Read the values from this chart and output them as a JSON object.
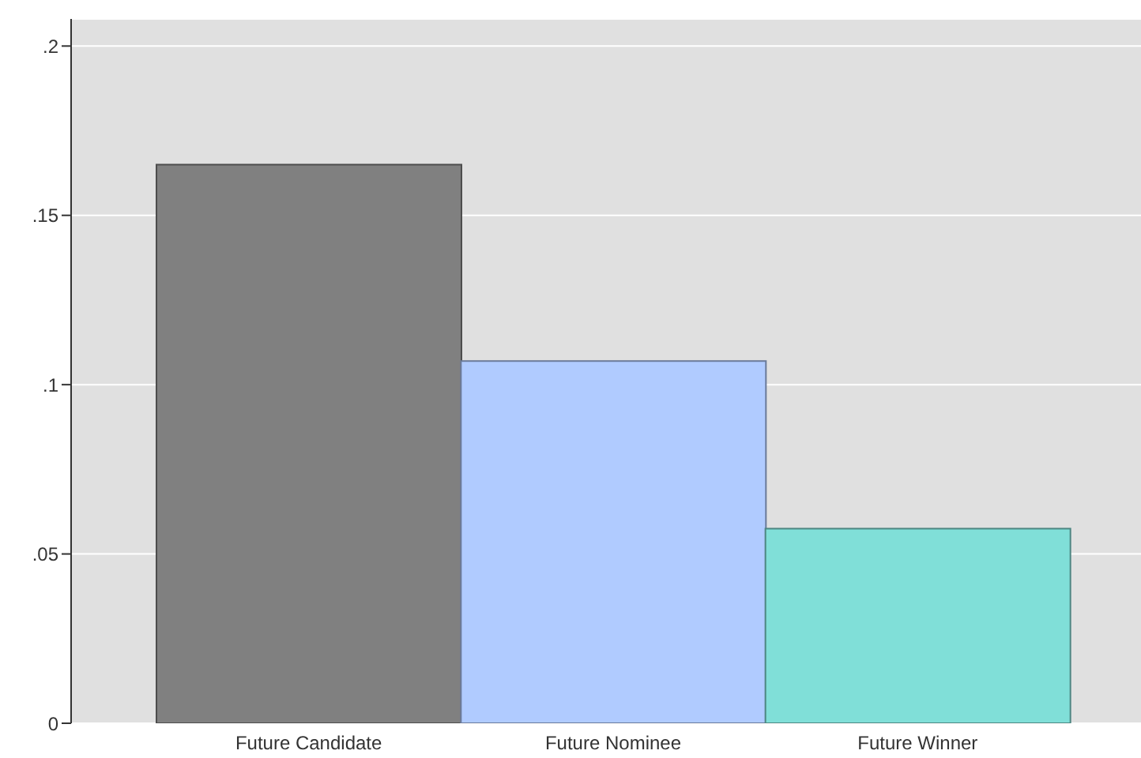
{
  "chart_data": {
    "type": "bar",
    "categories": [
      "Future Candidate",
      "Future Nominee",
      "Future Winner"
    ],
    "values": [
      0.165,
      0.107,
      0.0575
    ],
    "colors": [
      "#808080",
      "#b0cbff",
      "#80dfd8"
    ],
    "ylim": [
      0,
      0.208
    ],
    "yticks": [
      0,
      {
        "value": 0.05,
        "label": ".05"
      },
      {
        "value": 0.1,
        "label": ".1"
      },
      {
        "value": 0.15,
        "label": ".15"
      },
      {
        "value": 0.2,
        "label": ".2"
      }
    ],
    "grid": "y"
  }
}
